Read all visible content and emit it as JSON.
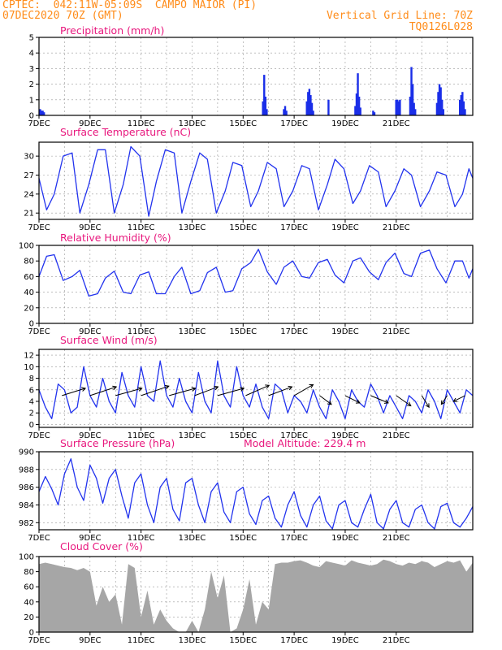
{
  "header": {
    "line1": "CPTEC:  042:11W-05:09S  CAMPO MAIOR (PI)",
    "line2": "07DEC2020 70Z (GMT)",
    "right1": "Vertical Grid Line: 70Z",
    "right2": "TQ0126L028"
  },
  "colors": {
    "line": "#2233ee",
    "bar": "#1a2ee8",
    "cloud": "#a6a6a6",
    "title": "#e8177d",
    "header": "#ff8c1a",
    "grid": "#999999"
  },
  "chart_data": [
    {
      "type": "bar",
      "title": "Precipitation (mm/h)",
      "ylim": [
        0,
        5
      ],
      "yticks": [
        0,
        1,
        2,
        3,
        4,
        5
      ],
      "xticks": [
        "7DEC",
        "9DEC",
        "11DEC",
        "13DEC",
        "15DEC",
        "17DEC",
        "19DEC",
        "21DEC"
      ],
      "x_unit": "days since 7DEC",
      "x": [
        0.05,
        0.1,
        0.15,
        0.2,
        8.78,
        8.83,
        8.88,
        8.93,
        9.6,
        9.65,
        9.7,
        10.5,
        10.55,
        10.6,
        10.65,
        10.7,
        10.75,
        11.35,
        12.4,
        12.45,
        12.5,
        12.55,
        12.6,
        13.1,
        13.15,
        14.0,
        14.05,
        14.1,
        14.15,
        14.55,
        14.6,
        14.65,
        14.7,
        14.75,
        15.6,
        15.65,
        15.7,
        15.75,
        15.8,
        15.85,
        16.5,
        16.55,
        16.6,
        16.65,
        16.7
      ],
      "values": [
        0.4,
        0.3,
        0.3,
        0.2,
        0.9,
        2.6,
        1.2,
        0.4,
        0.4,
        0.6,
        0.3,
        0.9,
        1.5,
        1.7,
        1.3,
        0.8,
        0.3,
        1.0,
        0.6,
        1.4,
        2.7,
        1.2,
        0.5,
        0.3,
        0.2,
        1.0,
        1.0,
        0.9,
        1.0,
        1.2,
        3.1,
        2.0,
        0.8,
        0.4,
        0.8,
        1.5,
        2.0,
        1.8,
        1.0,
        0.4,
        1.0,
        1.3,
        1.5,
        0.9,
        0.4
      ]
    },
    {
      "type": "line",
      "title": "Surface Temperature (nC)",
      "ylim": [
        20,
        32.2
      ],
      "yticks": [
        21,
        24,
        27,
        30
      ],
      "xticks": [
        "7DEC",
        "9DEC",
        "11DEC",
        "13DEC",
        "15DEC",
        "17DEC",
        "19DEC",
        "21DEC"
      ],
      "x_unit": "days since 7DEC",
      "x": [
        0,
        0.3,
        0.6,
        0.95,
        1.3,
        1.6,
        1.95,
        2.3,
        2.6,
        2.95,
        3.3,
        3.6,
        3.95,
        4.3,
        4.6,
        4.95,
        5.3,
        5.6,
        5.95,
        6.3,
        6.6,
        6.95,
        7.3,
        7.6,
        7.95,
        8.3,
        8.6,
        8.95,
        9.3,
        9.6,
        9.95,
        10.3,
        10.6,
        10.95,
        11.3,
        11.6,
        11.95,
        12.3,
        12.6,
        12.95,
        13.3,
        13.6,
        13.95,
        14.3,
        14.6,
        14.95,
        15.3,
        15.6,
        15.95,
        16.3,
        16.6,
        16.85,
        17.0
      ],
      "values": [
        26.5,
        21.5,
        24.0,
        30.0,
        30.5,
        21.0,
        25.5,
        31.0,
        31.0,
        21.0,
        25.5,
        31.5,
        30.0,
        20.5,
        26.0,
        31.0,
        30.5,
        21.0,
        26.0,
        30.5,
        29.5,
        21.0,
        24.5,
        29.0,
        28.5,
        22.0,
        24.5,
        29.0,
        28.0,
        22.0,
        24.5,
        28.5,
        28.0,
        21.5,
        25.5,
        29.5,
        28.0,
        22.5,
        24.5,
        28.5,
        27.5,
        22.0,
        24.5,
        28.0,
        27.0,
        22.0,
        24.5,
        27.5,
        27.0,
        22.0,
        24.0,
        28.0,
        26.5
      ]
    },
    {
      "type": "line",
      "title": "Relative Humidity (%)",
      "ylim": [
        0,
        100
      ],
      "yticks": [
        0,
        20,
        40,
        60,
        80,
        100
      ],
      "xticks": [
        "7DEC",
        "9DEC",
        "11DEC",
        "13DEC",
        "15DEC",
        "17DEC",
        "19DEC",
        "21DEC"
      ],
      "x_unit": "days since 7DEC",
      "x": [
        0,
        0.3,
        0.6,
        0.95,
        1.3,
        1.6,
        1.95,
        2.3,
        2.6,
        2.95,
        3.3,
        3.6,
        3.95,
        4.3,
        4.6,
        4.95,
        5.3,
        5.6,
        5.95,
        6.3,
        6.6,
        6.95,
        7.3,
        7.6,
        7.95,
        8.3,
        8.6,
        8.95,
        9.3,
        9.6,
        9.95,
        10.3,
        10.6,
        10.95,
        11.3,
        11.6,
        11.95,
        12.3,
        12.6,
        12.95,
        13.3,
        13.6,
        13.95,
        14.3,
        14.6,
        14.95,
        15.3,
        15.6,
        15.95,
        16.3,
        16.6,
        16.85,
        17.0
      ],
      "values": [
        60,
        86,
        88,
        55,
        60,
        68,
        35,
        38,
        58,
        67,
        40,
        38,
        62,
        66,
        38,
        38,
        60,
        72,
        38,
        42,
        65,
        72,
        40,
        42,
        70,
        78,
        95,
        66,
        50,
        72,
        80,
        60,
        58,
        78,
        82,
        62,
        52,
        80,
        84,
        66,
        56,
        78,
        90,
        64,
        60,
        90,
        94,
        70,
        52,
        80,
        80,
        58,
        70
      ]
    },
    {
      "type": "line",
      "title": "Surface Wind (m/s)",
      "ylim": [
        -0.5,
        13
      ],
      "yticks": [
        0,
        2,
        4,
        6,
        8,
        10,
        12
      ],
      "xticks": [
        "7DEC",
        "9DEC",
        "11DEC",
        "13DEC",
        "15DEC",
        "17DEC",
        "19DEC",
        "21DEC"
      ],
      "x_unit": "days since 7DEC",
      "x": [
        0,
        0.25,
        0.5,
        0.75,
        1.0,
        1.25,
        1.5,
        1.75,
        2.0,
        2.25,
        2.5,
        2.75,
        3.0,
        3.25,
        3.5,
        3.75,
        4.0,
        4.25,
        4.5,
        4.75,
        5.0,
        5.25,
        5.5,
        5.75,
        6.0,
        6.25,
        6.5,
        6.75,
        7.0,
        7.25,
        7.5,
        7.75,
        8.0,
        8.25,
        8.5,
        8.75,
        9.0,
        9.25,
        9.5,
        9.75,
        10.0,
        10.25,
        10.5,
        10.75,
        11.0,
        11.25,
        11.5,
        11.75,
        12.0,
        12.25,
        12.5,
        12.75,
        13.0,
        13.25,
        13.5,
        13.75,
        14.0,
        14.25,
        14.5,
        14.75,
        15.0,
        15.25,
        15.5,
        15.75,
        16.0,
        16.25,
        16.5,
        16.75,
        17.0
      ],
      "values": [
        6,
        3,
        1,
        7,
        6,
        2,
        3,
        10,
        5,
        3,
        8,
        4,
        2,
        9,
        5,
        3,
        10,
        5,
        4,
        11,
        5,
        3,
        8,
        4,
        2,
        9,
        4,
        2,
        11,
        5,
        3,
        10,
        5,
        3,
        7,
        3,
        1,
        7,
        6,
        2,
        5,
        4,
        2,
        6,
        3,
        1,
        6,
        4,
        1,
        6,
        4,
        3,
        7,
        5,
        2,
        5,
        3,
        1,
        5,
        4,
        2,
        6,
        4,
        1,
        6,
        4,
        2,
        6,
        5
      ],
      "arrows": [
        {
          "x": 0.9,
          "u": 1.6,
          "v": -1.0
        },
        {
          "x": 2.0,
          "u": 1.8,
          "v": -1.2
        },
        {
          "x": 3.0,
          "u": 1.8,
          "v": -1.0
        },
        {
          "x": 4.0,
          "u": 1.9,
          "v": -1.3
        },
        {
          "x": 5.1,
          "u": 1.8,
          "v": -1.0
        },
        {
          "x": 6.1,
          "u": 1.6,
          "v": -1.2
        },
        {
          "x": 7.0,
          "u": 1.8,
          "v": -1.0
        },
        {
          "x": 8.1,
          "u": 1.6,
          "v": -1.4
        },
        {
          "x": 9.0,
          "u": 1.6,
          "v": -1.2
        },
        {
          "x": 10.0,
          "u": 1.3,
          "v": -1.5
        },
        {
          "x": 11.0,
          "u": 0.8,
          "v": 1.2
        },
        {
          "x": 12.0,
          "u": 1.0,
          "v": 1.0
        },
        {
          "x": 13.0,
          "u": 1.2,
          "v": 1.0
        },
        {
          "x": 14.0,
          "u": 1.0,
          "v": 1.4
        },
        {
          "x": 15.0,
          "u": 0.5,
          "v": 1.6
        },
        {
          "x": 16.0,
          "u": -0.4,
          "v": 1.2
        },
        {
          "x": 16.7,
          "u": -0.8,
          "v": 0.8
        }
      ]
    },
    {
      "type": "line",
      "title": "Surface Pressure (hPa)",
      "annotation": "Model Altitude: 229.4  m",
      "ylim": [
        981.2,
        990
      ],
      "yticks": [
        982,
        984,
        986,
        988,
        990
      ],
      "xticks": [
        "7DEC",
        "9DEC",
        "11DEC",
        "13DEC",
        "15DEC",
        "17DEC",
        "19DEC",
        "21DEC"
      ],
      "x_unit": "days since 7DEC",
      "x": [
        0,
        0.25,
        0.5,
        0.75,
        1.0,
        1.25,
        1.5,
        1.75,
        2.0,
        2.25,
        2.5,
        2.75,
        3.0,
        3.25,
        3.5,
        3.75,
        4.0,
        4.25,
        4.5,
        4.75,
        5.0,
        5.25,
        5.5,
        5.75,
        6.0,
        6.25,
        6.5,
        6.75,
        7.0,
        7.25,
        7.5,
        7.75,
        8.0,
        8.25,
        8.5,
        8.75,
        9.0,
        9.25,
        9.5,
        9.75,
        10.0,
        10.25,
        10.5,
        10.75,
        11.0,
        11.25,
        11.5,
        11.75,
        12.0,
        12.25,
        12.5,
        12.75,
        13.0,
        13.25,
        13.5,
        13.75,
        14.0,
        14.25,
        14.5,
        14.75,
        15.0,
        15.25,
        15.5,
        15.75,
        16.0,
        16.25,
        16.5,
        16.75,
        17.0
      ],
      "values": [
        985.5,
        987.2,
        985.8,
        984.0,
        987.5,
        989.2,
        986.0,
        984.5,
        988.5,
        987.0,
        984.2,
        987.0,
        988.0,
        985.0,
        982.5,
        986.5,
        987.5,
        984.0,
        982.0,
        986.0,
        987.0,
        983.5,
        982.2,
        986.5,
        987.0,
        984.0,
        982.0,
        985.5,
        986.5,
        983.2,
        982.0,
        985.5,
        986.0,
        983.0,
        981.8,
        984.5,
        985.0,
        982.5,
        981.5,
        984.0,
        985.5,
        982.8,
        981.5,
        984.0,
        985.0,
        982.2,
        981.3,
        984.0,
        984.5,
        982.0,
        981.5,
        983.5,
        985.2,
        982.0,
        981.3,
        983.5,
        984.5,
        982.0,
        981.5,
        983.5,
        984.0,
        982.0,
        981.3,
        983.8,
        984.2,
        982.0,
        981.5,
        982.5,
        983.8
      ]
    },
    {
      "type": "area",
      "title": "Cloud Cover (%)",
      "ylim": [
        0,
        100
      ],
      "yticks": [
        0,
        20,
        40,
        60,
        80,
        100
      ],
      "xticks": [
        "7DEC",
        "9DEC",
        "11DEC",
        "13DEC",
        "15DEC",
        "17DEC",
        "19DEC",
        "21DEC"
      ],
      "x_unit": "days since 7DEC",
      "x": [
        0,
        0.25,
        0.5,
        0.75,
        1.0,
        1.25,
        1.5,
        1.75,
        2.0,
        2.25,
        2.5,
        2.75,
        3.0,
        3.25,
        3.5,
        3.75,
        4.0,
        4.25,
        4.5,
        4.75,
        5.0,
        5.25,
        5.5,
        5.75,
        6.0,
        6.25,
        6.5,
        6.75,
        7.0,
        7.25,
        7.5,
        7.75,
        8.0,
        8.25,
        8.5,
        8.75,
        9.0,
        9.25,
        9.5,
        9.75,
        10.0,
        10.25,
        10.5,
        10.75,
        11.0,
        11.25,
        11.5,
        11.75,
        12.0,
        12.25,
        12.5,
        12.75,
        13.0,
        13.25,
        13.5,
        13.75,
        14.0,
        14.25,
        14.5,
        14.75,
        15.0,
        15.25,
        15.5,
        15.75,
        16.0,
        16.25,
        16.5,
        16.75,
        17.0
      ],
      "values": [
        90,
        92,
        90,
        88,
        86,
        85,
        82,
        85,
        80,
        35,
        60,
        40,
        50,
        10,
        90,
        85,
        20,
        55,
        10,
        30,
        15,
        5,
        0,
        0,
        15,
        0,
        30,
        80,
        45,
        75,
        0,
        5,
        30,
        70,
        10,
        40,
        30,
        90,
        92,
        92,
        94,
        95,
        92,
        88,
        86,
        94,
        92,
        90,
        88,
        95,
        92,
        90,
        88,
        90,
        96,
        94,
        90,
        88,
        92,
        90,
        94,
        92,
        86,
        90,
        94,
        92,
        95,
        80,
        92
      ]
    }
  ]
}
